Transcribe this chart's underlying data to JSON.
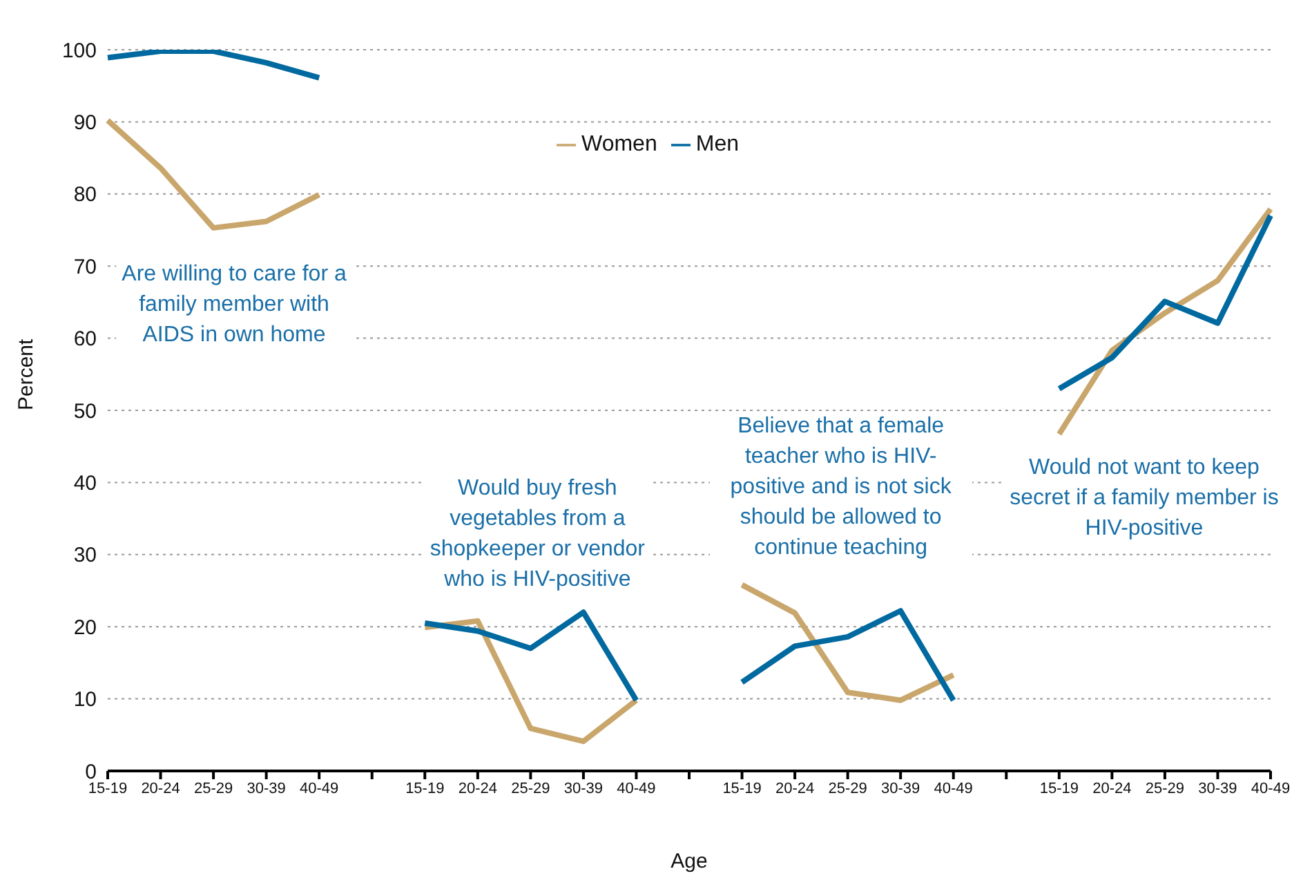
{
  "chart_data": {
    "type": "line",
    "xlabel": "Age",
    "ylabel": "Percent",
    "categories": [
      "15-19",
      "20-24",
      "25-29",
      "30-39",
      "40-49",
      null,
      "15-19",
      "20-24",
      "25-29",
      "30-39",
      "40-49",
      null,
      "15-19",
      "20-24",
      "25-29",
      "30-39",
      "40-49",
      null,
      "15-19",
      "20-24",
      "25-29",
      "30-39",
      "40-49"
    ],
    "series": [
      {
        "name": "Women",
        "color": "#c9a66b",
        "values": [
          90.2,
          83.6,
          75.3,
          76.2,
          79.9,
          null,
          19.9,
          20.8,
          5.9,
          4.1,
          9.8,
          null,
          25.8,
          21.9,
          10.9,
          9.8,
          13.3,
          null,
          46.7,
          58.3,
          63.5,
          68,
          77.9
        ]
      },
      {
        "name": "Men",
        "color": "#00699f",
        "values": [
          98.9,
          99.8,
          99.8,
          98.2,
          96.1,
          null,
          20.5,
          19.4,
          17,
          22,
          9.8,
          null,
          12.3,
          17.3,
          18.6,
          22.2,
          9.8,
          null,
          53,
          57.3,
          65.1,
          62.1,
          77
        ]
      }
    ],
    "ylim": [
      0,
      100
    ],
    "yticks": [
      0,
      10,
      20,
      30,
      40,
      50,
      60,
      70,
      80,
      90,
      100
    ],
    "grid": "y",
    "legend": "top",
    "marker": "none",
    "line_style": "solid",
    "annotations": [
      "Are willing to care for a family member with AIDS in own home",
      "Would buy fresh vegetables from a shopkeeper or vendor who is HIV-positive",
      "Believe that a female teacher who is HIV-positive and is not sick should be allowed to continue teaching",
      "Would not want to keep secret if a family member is HIV-positive"
    ]
  }
}
